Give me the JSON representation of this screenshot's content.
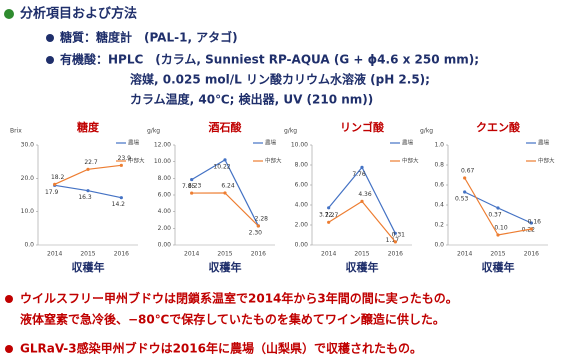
{
  "header": {
    "title": "分析項目および方法",
    "items": [
      "糖質：糖度計　(PAL-1, アタゴ)",
      "有機酸：HPLC　(カラム, Sunniest RP-AQUA (G + ϕ4.6 x 250 mm);",
      "溶媒, 0.025 mol/L リン酸カリウム水溶液 (pH 2.5);",
      "カラム温度, 40℃; 検出器, UV (210 nm))"
    ]
  },
  "notes": [
    "ウイルスフリー甲州ブドウは閉鎖系温室で2014年から3年間の間に実ったもの。",
    "液体窒素で急冷後、−80℃で保存していたものを集めてワイン醸造に供した。",
    "GLRaV-3感染甲州ブドウは2016年に農場（山梨県）で収穫されたもの。"
  ],
  "chart_data": [
    {
      "type": "line",
      "title": "糖度",
      "y_label": "Brix",
      "x_label": "収穫年",
      "categories": [
        "2014",
        "2015",
        "2016"
      ],
      "ylim": [
        0,
        30
      ],
      "yticks": [
        {
          "value": 0,
          "label": "0.0"
        },
        {
          "value": 10,
          "label": "10.0"
        },
        {
          "value": 20,
          "label": "20.0"
        },
        {
          "value": 30,
          "label": "30.0"
        }
      ],
      "series": [
        {
          "name": "農場",
          "color": "#4472c4",
          "values": [
            17.9,
            16.3,
            14.2
          ]
        },
        {
          "name": "中部大",
          "color": "#ed7d31",
          "values": [
            18.2,
            22.7,
            23.9
          ]
        }
      ]
    },
    {
      "type": "line",
      "title": "酒石酸",
      "y_label": "g/kg",
      "x_label": "収穫年",
      "categories": [
        "2014",
        "2015",
        "2016"
      ],
      "ylim": [
        0,
        12
      ],
      "yticks": [
        {
          "value": 0,
          "label": "0.00"
        },
        {
          "value": 2,
          "label": "2.00"
        },
        {
          "value": 4,
          "label": "4.00"
        },
        {
          "value": 6,
          "label": "6.00"
        },
        {
          "value": 8,
          "label": "8.00"
        },
        {
          "value": 10,
          "label": "10.00"
        },
        {
          "value": 12,
          "label": "12.00"
        }
      ],
      "series": [
        {
          "name": "農場",
          "color": "#4472c4",
          "values": [
            7.85,
            10.22,
            2.3
          ],
          "value_labels": [
            "7.85",
            "10.22",
            "2.30"
          ]
        },
        {
          "name": "中部大",
          "color": "#ed7d31",
          "values": [
            6.23,
            6.24,
            2.28
          ],
          "value_labels": [
            "6.23",
            "6.24",
            "2.28"
          ]
        }
      ]
    },
    {
      "type": "line",
      "title": "リンゴ酸",
      "y_label": "g/kg",
      "x_label": "収穫年",
      "categories": [
        "2014",
        "2015",
        "2016"
      ],
      "ylim": [
        0,
        10
      ],
      "yticks": [
        {
          "value": 0,
          "label": "0.00"
        },
        {
          "value": 2,
          "label": "2.00"
        },
        {
          "value": 4,
          "label": "4.00"
        },
        {
          "value": 6,
          "label": "6.00"
        },
        {
          "value": 8,
          "label": "8.00"
        },
        {
          "value": 10,
          "label": "10.00"
        }
      ],
      "series": [
        {
          "name": "農場",
          "color": "#4472c4",
          "values": [
            3.72,
            7.76,
            1.17
          ]
        },
        {
          "name": "中部大",
          "color": "#ed7d31",
          "values": [
            2.27,
            4.36,
            0.31
          ]
        }
      ]
    },
    {
      "type": "line",
      "title": "クエン酸",
      "y_label": "g/kg",
      "x_label": "収穫年",
      "categories": [
        "2014",
        "2015",
        "2016"
      ],
      "ylim": [
        0,
        1
      ],
      "yticks": [
        {
          "value": 0,
          "label": "0.0"
        },
        {
          "value": 0.2,
          "label": "0.2"
        },
        {
          "value": 0.4,
          "label": "0.4"
        },
        {
          "value": 0.6,
          "label": "0.6"
        },
        {
          "value": 0.8,
          "label": "0.8"
        },
        {
          "value": 1,
          "label": "1.0"
        }
      ],
      "series": [
        {
          "name": "農場",
          "color": "#4472c4",
          "values": [
            0.53,
            0.37,
            0.22
          ],
          "value_labels": [
            "0.53",
            "0.37",
            "0.22"
          ]
        },
        {
          "name": "中部大",
          "color": "#ed7d31",
          "values": [
            0.67,
            0.1,
            0.16
          ],
          "value_labels": [
            "0.67",
            "0.10",
            "0.16"
          ]
        }
      ]
    }
  ]
}
